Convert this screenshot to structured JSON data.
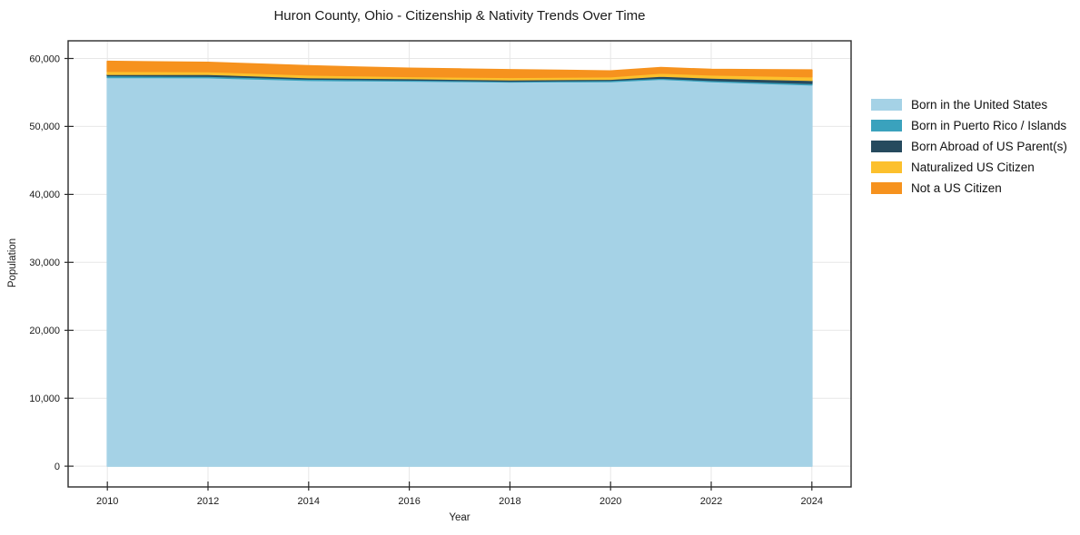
{
  "chart_data": {
    "type": "area",
    "stacked": true,
    "title": "Huron County, Ohio - Citizenship & Nativity Trends Over Time",
    "xlabel": "Year",
    "ylabel": "Population",
    "x": [
      2010,
      2011,
      2012,
      2013,
      2014,
      2015,
      2016,
      2017,
      2018,
      2019,
      2020,
      2021,
      2022,
      2023,
      2024
    ],
    "series": [
      {
        "name": "Born in the United States",
        "slug": "born-in-the-united-states",
        "color": "#a5d2e6",
        "values": [
          57200,
          57190,
          57180,
          56980,
          56780,
          56730,
          56690,
          56620,
          56550,
          56580,
          56610,
          56960,
          56610,
          56360,
          56110
        ]
      },
      {
        "name": "Born in Puerto Rico / Islands",
        "slug": "born-in-puerto-rico-islands",
        "color": "#3aa2bd",
        "values": [
          270,
          250,
          230,
          215,
          200,
          180,
          160,
          145,
          130,
          150,
          170,
          160,
          170,
          200,
          230
        ]
      },
      {
        "name": "Born Abroad of US Parent(s)",
        "slug": "born-abroad-of-us-parents",
        "color": "#264a5e",
        "values": [
          200,
          235,
          270,
          235,
          200,
          200,
          200,
          195,
          190,
          180,
          170,
          290,
          360,
          400,
          440
        ]
      },
      {
        "name": "Naturalized US Citizen",
        "slug": "naturalized-us-citizen",
        "color": "#fcc02d",
        "values": [
          450,
          425,
          400,
          400,
          400,
          355,
          310,
          330,
          350,
          355,
          360,
          440,
          440,
          485,
          530
        ]
      },
      {
        "name": "Not a US Citizen",
        "slug": "not-a-us-citizen",
        "color": "#f6921e",
        "values": [
          1450,
          1395,
          1340,
          1340,
          1340,
          1270,
          1200,
          1160,
          1120,
          980,
          840,
          800,
          800,
          900,
          1000
        ]
      }
    ],
    "xticks": [
      2010,
      2012,
      2014,
      2016,
      2018,
      2020,
      2022,
      2024
    ],
    "xtick_labels": [
      "2010",
      "2012",
      "2014",
      "2016",
      "2018",
      "2020",
      "2022",
      "2024"
    ],
    "yticks": [
      0,
      10000,
      20000,
      30000,
      40000,
      50000,
      60000
    ],
    "ytick_labels": [
      "0",
      "10,000",
      "20,000",
      "30,000",
      "40,000",
      "50,000",
      "60,000"
    ],
    "xlim": [
      2009.22,
      2024.78
    ],
    "ylim": [
      -3050,
      62600
    ],
    "grid": true,
    "legend_position": "right-outside"
  },
  "colors": {
    "grid": "#e7e7e7",
    "frame": "#2b2b2b",
    "text": "#1a1a1a",
    "background": "#ffffff"
  }
}
